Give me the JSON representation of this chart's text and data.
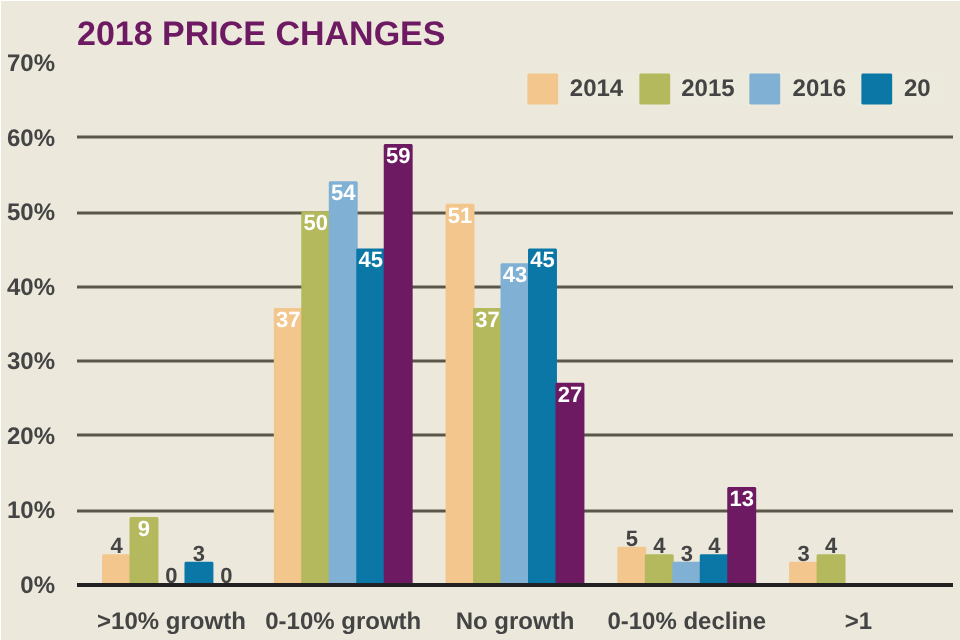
{
  "chart_data": {
    "type": "bar",
    "title": "2018 PRICE CHANGES",
    "categories": [
      ">10% growth",
      "0-10% growth",
      "No growth",
      "0-10% decline",
      ">1"
    ],
    "series": [
      {
        "name": "2014",
        "color": "#f2c68c",
        "values": [
          4,
          37,
          51,
          5,
          3
        ]
      },
      {
        "name": "2015",
        "color": "#b3b95c",
        "values": [
          9,
          50,
          37,
          4,
          4
        ]
      },
      {
        "name": "2016",
        "color": "#80b1d5",
        "values": [
          0,
          54,
          43,
          3,
          null
        ]
      },
      {
        "name": "20",
        "color": "#0a77a6",
        "values": [
          3,
          45,
          45,
          4,
          null
        ]
      },
      {
        "color": "#6d1a62",
        "values": [
          0,
          59,
          27,
          13,
          null
        ]
      }
    ],
    "ylim": [
      0,
      70
    ],
    "yticks": [
      {
        "value": 0,
        "label": "0%"
      },
      {
        "value": 10,
        "label": "10%"
      },
      {
        "value": 20,
        "label": "20%"
      },
      {
        "value": 30,
        "label": "30%"
      },
      {
        "value": 40,
        "label": "40%"
      },
      {
        "value": 50,
        "label": "50%"
      },
      {
        "value": 60,
        "label": "60%"
      },
      {
        "value": 70,
        "label": "70%"
      }
    ],
    "grid": "y",
    "legend": "top right",
    "data_labels": true
  }
}
